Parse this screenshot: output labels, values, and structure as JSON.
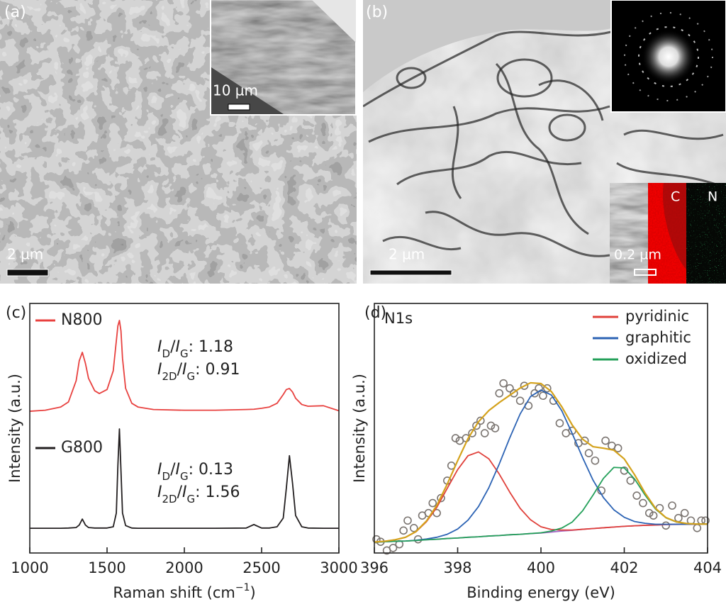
{
  "panels": {
    "a": {
      "label": "(a)",
      "scale_bar": "2 µm",
      "inset_scale_bar": "10 µm"
    },
    "b": {
      "label": "(b)",
      "scale_bar": "2 µm",
      "inset_scale_bar": "0.2 µm",
      "map_labels": [
        "C",
        "N"
      ]
    }
  },
  "chart_data": [
    {
      "type": "line",
      "panel_label": "(c)",
      "xlabel": [
        [
          "Raman shift (cm",
          "normal"
        ],
        [
          "−1",
          "sup"
        ],
        [
          ")",
          "normal"
        ]
      ],
      "ylabel": "Intensity (a.u.)",
      "x": [
        1000,
        1100,
        1200,
        1250,
        1300,
        1320,
        1340,
        1360,
        1380,
        1420,
        1450,
        1500,
        1540,
        1560,
        1570,
        1580,
        1590,
        1600,
        1620,
        1660,
        1700,
        1800,
        2000,
        2200,
        2400,
        2450,
        2500,
        2550,
        2600,
        2640,
        2660,
        2680,
        2700,
        2720,
        2760,
        2800,
        2900,
        3000
      ],
      "xlim": [
        1000,
        3000
      ],
      "xticks": [
        1000,
        1500,
        2000,
        2500,
        3000
      ],
      "ylim": [
        0,
        10
      ],
      "series": [
        {
          "name": "N800",
          "color": "#e8413f",
          "values": [
            5.68,
            5.72,
            5.85,
            6.05,
            6.9,
            7.7,
            8.04,
            7.6,
            7.0,
            6.5,
            6.39,
            6.55,
            7.3,
            8.5,
            9.1,
            9.32,
            8.9,
            7.8,
            6.6,
            6.0,
            5.85,
            5.75,
            5.72,
            5.72,
            5.75,
            5.76,
            5.8,
            5.85,
            6.0,
            6.35,
            6.55,
            6.59,
            6.45,
            6.2,
            5.95,
            5.88,
            5.9,
            5.7
          ]
        },
        {
          "name": "G800",
          "color": "#231f20",
          "values": [
            0.99,
            0.99,
            0.99,
            1.0,
            1.02,
            1.12,
            1.36,
            1.12,
            1.02,
            1.0,
            1.0,
            1.0,
            1.05,
            1.6,
            3.5,
            4.97,
            3.3,
            1.6,
            1.1,
            1.0,
            0.99,
            0.99,
            0.99,
            0.99,
            1.0,
            1.14,
            1.0,
            1.0,
            1.05,
            1.4,
            2.6,
            3.9,
            2.8,
            1.5,
            1.05,
            1.0,
            0.99,
            0.99
          ]
        }
      ],
      "annotations": [
        [
          [
            "I",
            "italic"
          ],
          [
            "D",
            "sub"
          ],
          [
            "/",
            "normal"
          ],
          [
            "I",
            "italic"
          ],
          [
            "G",
            "sub"
          ],
          [
            ": 1.18",
            "normal"
          ]
        ],
        [
          [
            "I",
            "italic"
          ],
          [
            "2D",
            "sub"
          ],
          [
            "/",
            "normal"
          ],
          [
            "I",
            "italic"
          ],
          [
            "G",
            "sub"
          ],
          [
            ": 0.91",
            "normal"
          ]
        ],
        [
          [
            "I",
            "italic"
          ],
          [
            "D",
            "sub"
          ],
          [
            "/",
            "normal"
          ],
          [
            "I",
            "italic"
          ],
          [
            "G",
            "sub"
          ],
          [
            ": 0.13",
            "normal"
          ]
        ],
        [
          [
            "I",
            "italic"
          ],
          [
            "2D",
            "sub"
          ],
          [
            "/",
            "normal"
          ],
          [
            "I",
            "italic"
          ],
          [
            "G",
            "sub"
          ],
          [
            ": 1.56",
            "normal"
          ]
        ]
      ]
    },
    {
      "type": "line",
      "panel_label": "(d)",
      "annotation": "N1s",
      "xlabel": "Binding energy (eV)",
      "ylabel": "Intensity (a.u.)",
      "x": [
        396,
        396.25,
        396.5,
        396.75,
        397,
        397.25,
        397.5,
        397.75,
        398,
        398.25,
        398.5,
        398.75,
        399,
        399.25,
        399.5,
        399.75,
        400,
        400.25,
        400.5,
        400.75,
        401,
        401.25,
        401.5,
        401.75,
        402,
        402.25,
        402.5,
        402.75,
        403,
        403.25,
        403.5,
        403.75,
        404
      ],
      "xlim": [
        396,
        404
      ],
      "xticks": [
        396,
        398,
        400,
        402,
        404
      ],
      "ylim": [
        0,
        10
      ],
      "legend": "upper right",
      "series": [
        {
          "name": "pyridinic",
          "color": "#e0403a",
          "values": [
            0.44,
            0.47,
            0.53,
            0.63,
            0.85,
            1.25,
            1.83,
            2.59,
            3.34,
            3.9,
            4.05,
            3.77,
            3.16,
            2.44,
            1.79,
            1.33,
            1.05,
            0.94,
            0.92,
            0.92,
            0.95,
            0.98,
            1.01,
            1.04,
            1.07,
            1.09,
            1.11,
            1.12,
            1.14,
            1.15,
            1.15,
            1.16,
            1.16
          ]
        },
        {
          "name": "graphitic",
          "color": "#2c63b4",
          "values": [
            0.43,
            0.45,
            0.47,
            0.48,
            0.51,
            0.56,
            0.63,
            0.75,
            0.96,
            1.32,
            1.86,
            2.62,
            3.57,
            4.61,
            5.57,
            6.27,
            6.53,
            6.33,
            5.7,
            4.79,
            3.82,
            2.92,
            2.22,
            1.73,
            1.43,
            1.26,
            1.19,
            1.15,
            1.15,
            1.15,
            1.15,
            1.16,
            1.16
          ]
        },
        {
          "name": "oxidized",
          "color": "#24a05a",
          "values": [
            0.43,
            0.45,
            0.47,
            0.48,
            0.5,
            0.53,
            0.55,
            0.58,
            0.6,
            0.63,
            0.65,
            0.68,
            0.7,
            0.73,
            0.75,
            0.78,
            0.81,
            0.88,
            1.0,
            1.24,
            1.69,
            2.32,
            2.99,
            3.43,
            3.41,
            2.96,
            2.32,
            1.76,
            1.41,
            1.24,
            1.18,
            1.16,
            1.16
          ]
        }
      ],
      "envelope": {
        "color": "#d4a21c",
        "values": [
          0.44,
          0.47,
          0.53,
          0.63,
          0.86,
          1.28,
          1.91,
          2.76,
          3.7,
          4.59,
          5.26,
          5.71,
          6.03,
          6.32,
          6.61,
          6.82,
          6.79,
          6.47,
          5.86,
          5.13,
          4.56,
          4.26,
          4.2,
          4.12,
          3.77,
          3.13,
          2.4,
          1.79,
          1.42,
          1.25,
          1.18,
          1.16,
          1.16
        ]
      },
      "background": {
        "color": "#a466c6",
        "values": [
          0.43,
          0.45,
          0.47,
          0.48,
          0.5,
          0.53,
          0.55,
          0.58,
          0.6,
          0.63,
          0.65,
          0.68,
          0.7,
          0.73,
          0.75,
          0.78,
          0.8,
          0.84,
          0.88,
          0.91,
          0.95,
          0.98,
          1.01,
          1.04,
          1.07,
          1.09,
          1.11,
          1.12,
          1.14,
          1.145,
          1.15,
          1.155,
          1.16
        ]
      },
      "points": {
        "color": "#7a7470",
        "x": [
          396.05,
          396.15,
          396.3,
          396.45,
          396.6,
          396.7,
          396.8,
          396.95,
          397.05,
          397.15,
          397.3,
          397.4,
          397.5,
          397.6,
          397.75,
          397.85,
          397.95,
          398.05,
          398.2,
          398.35,
          398.45,
          398.55,
          398.65,
          398.8,
          398.9,
          399.0,
          399.1,
          399.25,
          399.35,
          399.5,
          399.6,
          399.7,
          399.85,
          399.95,
          400.05,
          400.15,
          400.3,
          400.45,
          400.6,
          400.75,
          400.9,
          401.05,
          401.15,
          401.3,
          401.45,
          401.55,
          401.7,
          401.85,
          402.0,
          402.15,
          402.3,
          402.45,
          402.6,
          402.7,
          402.85,
          403.0,
          403.15,
          403.3,
          403.45,
          403.6,
          403.75,
          403.85,
          403.95
        ],
        "y": [
          0.55,
          0.45,
          0.1,
          0.2,
          0.35,
          0.9,
          1.3,
          1.0,
          0.55,
          1.5,
          1.6,
          2.0,
          1.6,
          2.2,
          2.9,
          3.5,
          4.6,
          4.5,
          4.6,
          4.8,
          5.1,
          5.3,
          4.8,
          5.1,
          5.0,
          6.4,
          6.8,
          6.6,
          6.4,
          6.1,
          6.7,
          5.9,
          6.4,
          6.6,
          6.3,
          6.6,
          6.1,
          5.2,
          4.8,
          4.9,
          4.4,
          4.5,
          4.0,
          3.7,
          2.5,
          4.5,
          4.3,
          4.2,
          3.3,
          2.9,
          2.3,
          2.0,
          1.6,
          1.5,
          1.8,
          1.1,
          1.9,
          1.4,
          1.6,
          1.3,
          1.0,
          1.3,
          1.3
        ]
      }
    }
  ]
}
